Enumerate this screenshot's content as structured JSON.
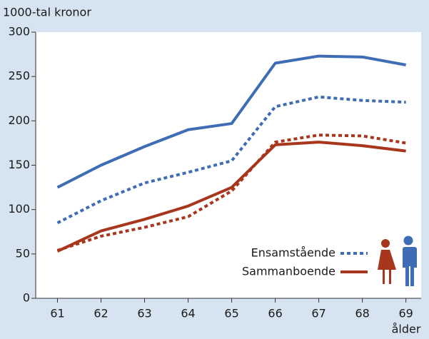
{
  "chart_data": {
    "type": "line",
    "title": "1000-tal kronor",
    "x_label": "ålder",
    "x": [
      61,
      62,
      63,
      64,
      65,
      66,
      67,
      68,
      69
    ],
    "xlim": [
      60.5,
      69.35
    ],
    "xticks": [
      61,
      62,
      63,
      64,
      65,
      66,
      67,
      68,
      69
    ],
    "ylim": [
      0,
      300
    ],
    "yticks": [
      0,
      50,
      100,
      150,
      200,
      250,
      300
    ],
    "series": [
      {
        "color": "#3e6db5",
        "dashed": false,
        "values": [
          125,
          150,
          171,
          190,
          197,
          265,
          273,
          272,
          263
        ]
      },
      {
        "color": "#3e6db5",
        "dashed": true,
        "values": [
          85,
          110,
          130,
          142,
          155,
          216,
          227,
          223,
          221
        ]
      },
      {
        "color": "#a8361c",
        "dashed": true,
        "values": [
          54,
          70,
          80,
          92,
          121,
          176,
          184,
          183,
          175
        ]
      },
      {
        "color": "#a8361c",
        "dashed": false,
        "values": [
          53,
          76,
          89,
          104,
          125,
          173,
          176,
          172,
          166
        ]
      }
    ],
    "legend": [
      {
        "label": "Ensamstående",
        "color": "#3e6db5",
        "dashed": true
      },
      {
        "label": "Sammanboende",
        "color": "#a8361c",
        "dashed": false
      }
    ]
  }
}
